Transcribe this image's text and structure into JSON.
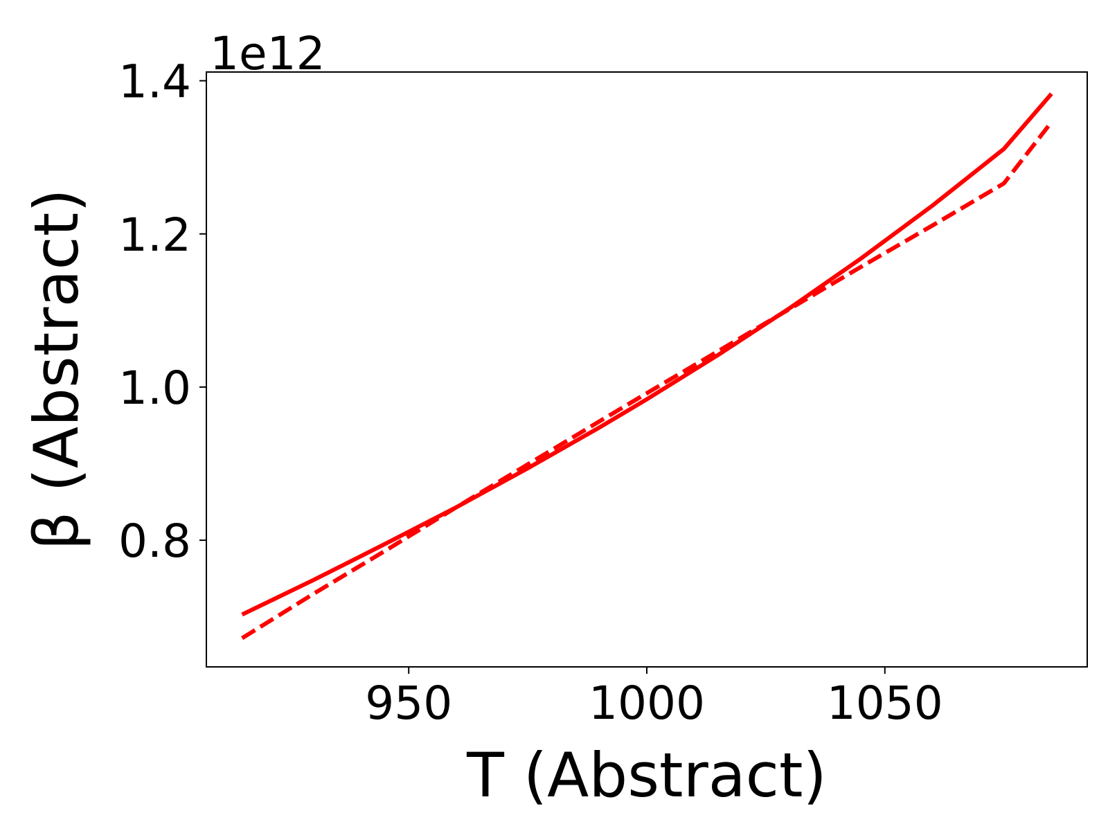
{
  "chart_data": {
    "type": "line",
    "xlabel": "T (Abstract)",
    "ylabel": "β (Abstract)",
    "y_offset_label": "1e12",
    "y_scale_factor": 1000000000000.0,
    "xlim": [
      907.5,
      1092.5
    ],
    "ylim": [
      0.6346,
      1.4114
    ],
    "x_ticks": [
      950,
      1000,
      1050
    ],
    "x_tick_labels": [
      "950",
      "1000",
      "1050"
    ],
    "y_ticks": [
      0.8,
      1.0,
      1.2,
      1.4
    ],
    "y_tick_labels": [
      "0.8",
      "1.0",
      "1.2",
      "1.4"
    ],
    "grid": false,
    "series": [
      {
        "style": "solid",
        "color": "#ff0000",
        "x": [
          915,
          930,
          945,
          960,
          975,
          990,
          1000,
          1015,
          1030,
          1045,
          1060,
          1075,
          1085
        ],
        "y": [
          0.703,
          0.748,
          0.795,
          0.843,
          0.894,
          0.947,
          0.984,
          1.042,
          1.103,
          1.168,
          1.237,
          1.311,
          1.383
        ]
      },
      {
        "style": "dashed",
        "color": "#ff0000",
        "x": [
          915,
          930,
          945,
          960,
          975,
          990,
          1000,
          1015,
          1030,
          1045,
          1060,
          1075,
          1085
        ],
        "y": [
          0.672,
          0.73,
          0.786,
          0.843,
          0.899,
          0.955,
          0.992,
          1.047,
          1.102,
          1.157,
          1.211,
          1.266,
          1.346
        ]
      }
    ]
  }
}
